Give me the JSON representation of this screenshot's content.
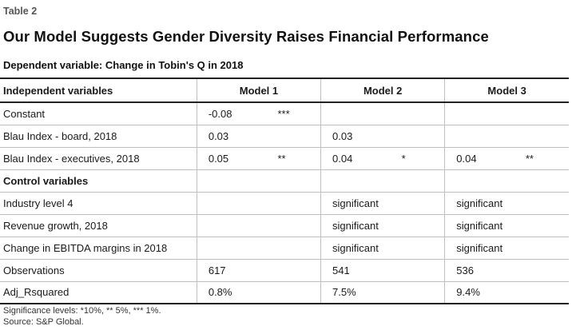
{
  "header": {
    "table_label": "Table 2",
    "title": "Our Model Suggests Gender Diversity Raises Financial Performance",
    "subtitle": "Dependent variable: Change in Tobin's Q in 2018"
  },
  "table": {
    "header_label": "Independent variables",
    "models": [
      "Model 1",
      "Model 2",
      "Model 3"
    ],
    "rows": [
      {
        "label": "Constant",
        "cells": [
          [
            "-0.08",
            "***"
          ],
          [
            "",
            ""
          ],
          [
            "",
            ""
          ]
        ]
      },
      {
        "label": "Blau Index - board, 2018",
        "cells": [
          [
            "0.03",
            ""
          ],
          [
            "0.03",
            ""
          ],
          [
            "",
            ""
          ]
        ]
      },
      {
        "label": "Blau Index - executives, 2018",
        "cells": [
          [
            "0.05",
            "**"
          ],
          [
            "0.04",
            "*"
          ],
          [
            "0.04",
            "**"
          ]
        ]
      }
    ],
    "section_label": "Control variables",
    "control_rows": [
      {
        "label": "Industry level 4",
        "cells": [
          "",
          "significant",
          "significant"
        ]
      },
      {
        "label": "Revenue growth, 2018",
        "cells": [
          "",
          "significant",
          "significant"
        ]
      },
      {
        "label": "Change in EBITDA margins in 2018",
        "cells": [
          "",
          "significant",
          "significant"
        ]
      },
      {
        "label": "Observations",
        "cells": [
          "617",
          "541",
          "536"
        ]
      },
      {
        "label": "Adj_Rsquared",
        "cells": [
          "0.8%",
          "7.5%",
          "9.4%"
        ]
      }
    ]
  },
  "footer": {
    "significance_note": "Significance levels: *10%, ** 5%, *** 1%.",
    "source": "Source: S&P Global."
  }
}
